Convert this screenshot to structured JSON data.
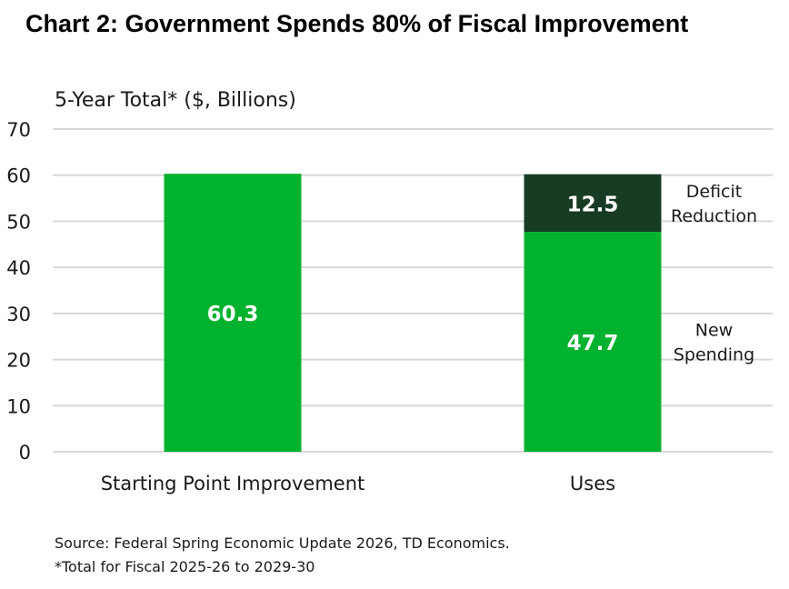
{
  "title": "Chart 2: Government Spends 80% of Fiscal Improvement",
  "chart_data": {
    "type": "bar",
    "stacked": true,
    "ylabel": "5-Year Total* ($, Billions)",
    "ylim": [
      0,
      70
    ],
    "yticks": [
      0,
      10,
      20,
      30,
      40,
      50,
      60,
      70
    ],
    "grid": true,
    "categories": [
      "Starting Point Improvement",
      "Uses"
    ],
    "series": [
      {
        "name": "New Spending",
        "values": [
          60.3,
          47.7
        ],
        "color": "#00b22d"
      },
      {
        "name": "Deficit Reduction",
        "values": [
          0,
          12.5
        ],
        "color": "#173b23"
      }
    ],
    "data_labels": [
      {
        "category": "Starting Point Improvement",
        "text": "60.3"
      },
      {
        "category": "Uses",
        "series": "Deficit Reduction",
        "text": "12.5"
      },
      {
        "category": "Uses",
        "series": "New Spending",
        "text": "47.7"
      }
    ],
    "legend_placement": "right of bars"
  },
  "footer": {
    "source": "Source: Federal Spring Economic Update 2026, TD Economics.",
    "note": "*Total for Fiscal 2025-26 to 2029-30"
  }
}
